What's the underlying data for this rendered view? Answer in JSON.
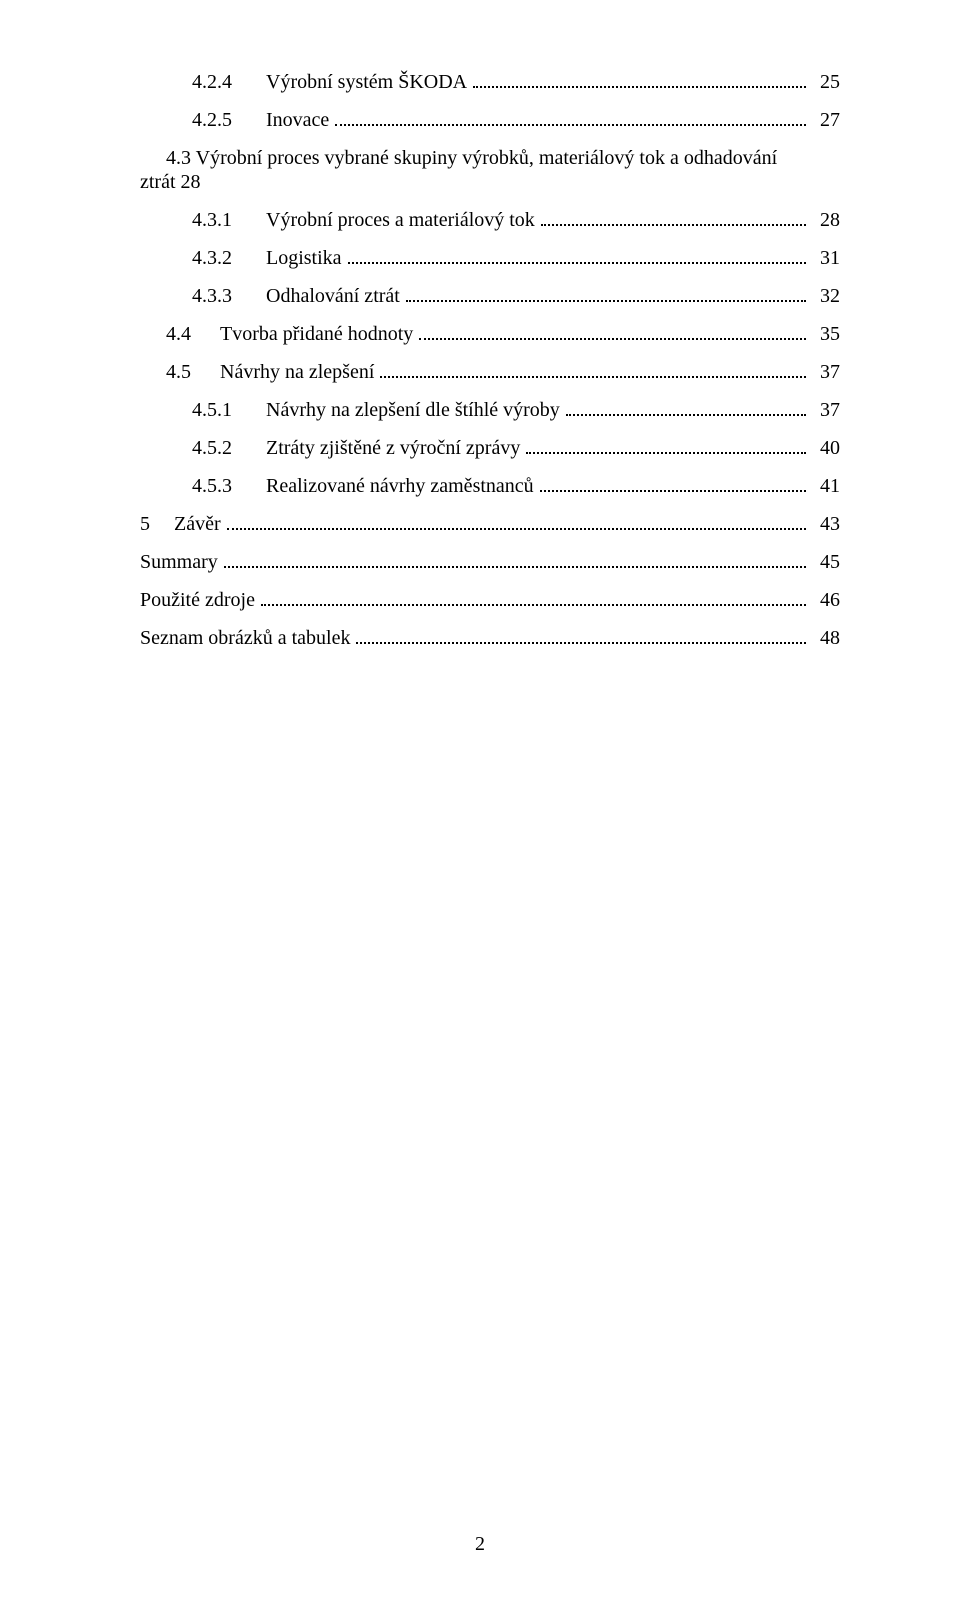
{
  "colors": {
    "text": "#000000",
    "background": "#ffffff",
    "leader": "#000000"
  },
  "typography": {
    "font_family": "Times New Roman",
    "font_size_pt": 12
  },
  "toc": {
    "entries": [
      {
        "number": "4.2.4",
        "title": "Výrobní systém ŠKODA",
        "page": "25",
        "indent": 2,
        "leader": true
      },
      {
        "number": "4.2.5",
        "title": "Inovace",
        "page": "27",
        "indent": 2,
        "leader": true
      },
      {
        "left": "4.3   Výrobní proces vybrané skupiny výrobků, materiálový tok a odhadování",
        "right": "ztrát   28",
        "indent": 1,
        "leader": false,
        "note_style": true
      },
      {
        "number": "4.3.1",
        "title": "Výrobní proces a materiálový tok",
        "page": "28",
        "indent": 2,
        "leader": true
      },
      {
        "number": "4.3.2",
        "title": "Logistika",
        "page": "31",
        "indent": 2,
        "leader": true
      },
      {
        "number": "4.3.3",
        "title": "Odhalování ztrát",
        "page": "32",
        "indent": 2,
        "leader": true
      },
      {
        "number": "4.4",
        "title": "Tvorba přidané hodnoty",
        "page": "35",
        "indent": 1,
        "leader": true
      },
      {
        "number": "4.5",
        "title": "Návrhy na zlepšení",
        "page": "37",
        "indent": 1,
        "leader": true
      },
      {
        "number": "4.5.1",
        "title": "Návrhy na zlepšení dle štíhlé výroby",
        "page": "37",
        "indent": 2,
        "leader": true
      },
      {
        "number": "4.5.2",
        "title": "Ztráty zjištěné z výroční zprávy",
        "page": "40",
        "indent": 2,
        "leader": true
      },
      {
        "number": "4.5.3",
        "title": "Realizované návrhy zaměstnanců",
        "page": "41",
        "indent": 2,
        "leader": true
      },
      {
        "number": "5",
        "title": "Závěr",
        "page": "43",
        "indent": 0,
        "leader": true
      },
      {
        "number": "",
        "title": "Summary",
        "page": "45",
        "indent": 0,
        "leader": true
      },
      {
        "number": "",
        "title": "Použité zdroje",
        "page": "46",
        "indent": 0,
        "leader": true
      },
      {
        "number": "",
        "title": "Seznam obrázků a tabulek",
        "page": "48",
        "indent": 0,
        "leader": true
      }
    ]
  },
  "footer": {
    "page_number": "2"
  }
}
